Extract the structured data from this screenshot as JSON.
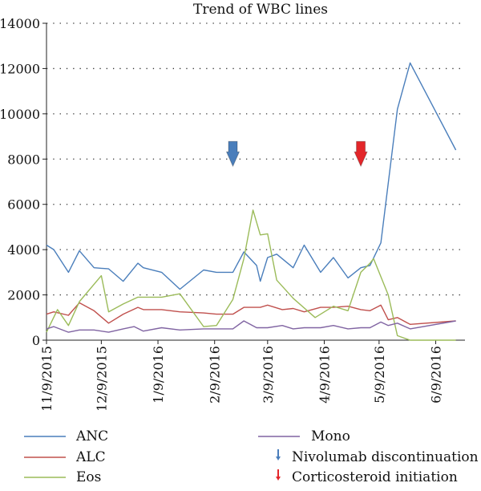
{
  "chart_data": {
    "type": "line",
    "title": "Trend of WBC lines",
    "xlabel": "",
    "ylabel": "",
    "ylim": [
      0,
      14000
    ],
    "yticks": [
      0,
      2000,
      4000,
      6000,
      8000,
      10000,
      12000,
      14000
    ],
    "xlim": [
      "2015-11-09",
      "2016-06-25"
    ],
    "xticks": [
      "11/9/2015",
      "12/9/2015",
      "1/9/2016",
      "2/9/2016",
      "3/9/2016",
      "4/9/2016",
      "5/9/2016",
      "6/9/2016"
    ],
    "grid": "horizontal dotted",
    "legend_position": "bottom",
    "series": [
      {
        "name": "ANC",
        "color": "#4a7ebb",
        "points": [
          [
            "2015-11-09",
            4200
          ],
          [
            "2015-11-13",
            4000
          ],
          [
            "2015-11-21",
            3000
          ],
          [
            "2015-11-27",
            3950
          ],
          [
            "2015-12-05",
            3200
          ],
          [
            "2015-12-13",
            3150
          ],
          [
            "2015-12-21",
            2600
          ],
          [
            "2015-12-29",
            3400
          ],
          [
            "2016-01-01",
            3200
          ],
          [
            "2016-01-11",
            3000
          ],
          [
            "2016-01-21",
            2250
          ],
          [
            "2016-02-03",
            3100
          ],
          [
            "2016-02-10",
            3000
          ],
          [
            "2016-02-19",
            3000
          ],
          [
            "2016-02-25",
            3900
          ],
          [
            "2016-03-03",
            3300
          ],
          [
            "2016-03-05",
            2600
          ],
          [
            "2016-03-09",
            3650
          ],
          [
            "2016-03-14",
            3800
          ],
          [
            "2016-03-23",
            3200
          ],
          [
            "2016-03-29",
            4200
          ],
          [
            "2016-04-07",
            3000
          ],
          [
            "2016-04-14",
            3650
          ],
          [
            "2016-04-22",
            2750
          ],
          [
            "2016-04-29",
            3200
          ],
          [
            "2016-05-04",
            3300
          ],
          [
            "2016-05-10",
            4300
          ],
          [
            "2016-05-19",
            10200
          ],
          [
            "2016-05-26",
            12250
          ],
          [
            "2016-06-20",
            8400
          ]
        ]
      },
      {
        "name": "ALC",
        "color": "#c0504d",
        "points": [
          [
            "2015-11-09",
            1150
          ],
          [
            "2015-11-13",
            1250
          ],
          [
            "2015-11-21",
            1100
          ],
          [
            "2015-11-27",
            1650
          ],
          [
            "2015-12-05",
            1300
          ],
          [
            "2015-12-13",
            750
          ],
          [
            "2015-12-21",
            1150
          ],
          [
            "2015-12-29",
            1450
          ],
          [
            "2016-01-01",
            1350
          ],
          [
            "2016-01-11",
            1350
          ],
          [
            "2016-01-21",
            1250
          ],
          [
            "2016-02-03",
            1200
          ],
          [
            "2016-02-10",
            1150
          ],
          [
            "2016-02-19",
            1150
          ],
          [
            "2016-02-25",
            1450
          ],
          [
            "2016-03-05",
            1450
          ],
          [
            "2016-03-09",
            1550
          ],
          [
            "2016-03-17",
            1350
          ],
          [
            "2016-03-23",
            1400
          ],
          [
            "2016-03-29",
            1250
          ],
          [
            "2016-04-07",
            1450
          ],
          [
            "2016-04-14",
            1450
          ],
          [
            "2016-04-22",
            1500
          ],
          [
            "2016-04-29",
            1350
          ],
          [
            "2016-05-04",
            1300
          ],
          [
            "2016-05-10",
            1550
          ],
          [
            "2016-05-14",
            900
          ],
          [
            "2016-05-19",
            1000
          ],
          [
            "2016-05-26",
            700
          ],
          [
            "2016-06-20",
            850
          ]
        ]
      },
      {
        "name": "Eos",
        "color": "#9bbb59",
        "points": [
          [
            "2015-11-09",
            350
          ],
          [
            "2015-11-15",
            1350
          ],
          [
            "2015-11-21",
            650
          ],
          [
            "2015-11-27",
            1700
          ],
          [
            "2015-12-09",
            2850
          ],
          [
            "2015-12-13",
            1250
          ],
          [
            "2015-12-21",
            1600
          ],
          [
            "2015-12-29",
            1900
          ],
          [
            "2016-01-01",
            1900
          ],
          [
            "2016-01-11",
            1900
          ],
          [
            "2016-01-21",
            2050
          ],
          [
            "2016-02-03",
            600
          ],
          [
            "2016-02-10",
            650
          ],
          [
            "2016-02-19",
            1800
          ],
          [
            "2016-02-25",
            3600
          ],
          [
            "2016-03-01",
            5750
          ],
          [
            "2016-03-05",
            4650
          ],
          [
            "2016-03-09",
            4700
          ],
          [
            "2016-03-14",
            2650
          ],
          [
            "2016-03-23",
            1850
          ],
          [
            "2016-04-04",
            1000
          ],
          [
            "2016-04-14",
            1500
          ],
          [
            "2016-04-22",
            1300
          ],
          [
            "2016-04-29",
            3000
          ],
          [
            "2016-05-04",
            3400
          ],
          [
            "2016-05-06",
            3600
          ],
          [
            "2016-05-14",
            2000
          ],
          [
            "2016-05-19",
            200
          ],
          [
            "2016-05-26",
            0
          ],
          [
            "2016-06-20",
            0
          ]
        ]
      },
      {
        "name": "Mono",
        "color": "#8064a2",
        "points": [
          [
            "2015-11-09",
            500
          ],
          [
            "2015-11-13",
            600
          ],
          [
            "2015-11-21",
            350
          ],
          [
            "2015-11-27",
            450
          ],
          [
            "2015-12-05",
            450
          ],
          [
            "2015-12-13",
            350
          ],
          [
            "2015-12-21",
            500
          ],
          [
            "2015-12-27",
            600
          ],
          [
            "2016-01-01",
            400
          ],
          [
            "2016-01-11",
            550
          ],
          [
            "2016-01-21",
            450
          ],
          [
            "2016-02-03",
            500
          ],
          [
            "2016-02-10",
            500
          ],
          [
            "2016-02-19",
            500
          ],
          [
            "2016-02-25",
            850
          ],
          [
            "2016-03-03",
            550
          ],
          [
            "2016-03-09",
            550
          ],
          [
            "2016-03-17",
            650
          ],
          [
            "2016-03-23",
            500
          ],
          [
            "2016-03-29",
            550
          ],
          [
            "2016-04-07",
            550
          ],
          [
            "2016-04-14",
            650
          ],
          [
            "2016-04-22",
            500
          ],
          [
            "2016-04-29",
            550
          ],
          [
            "2016-05-04",
            550
          ],
          [
            "2016-05-10",
            800
          ],
          [
            "2016-05-14",
            650
          ],
          [
            "2016-05-19",
            750
          ],
          [
            "2016-05-26",
            500
          ],
          [
            "2016-06-20",
            850
          ]
        ]
      }
    ],
    "annotations": [
      {
        "name": "Nivolumab discontinuation",
        "date": "2016-02-19",
        "color": "#4a7ebb",
        "marker": "arrow-down"
      },
      {
        "name": "Corticosteroid initiation",
        "date": "2016-04-29",
        "color": "#e3262a",
        "marker": "arrow-down"
      }
    ]
  }
}
